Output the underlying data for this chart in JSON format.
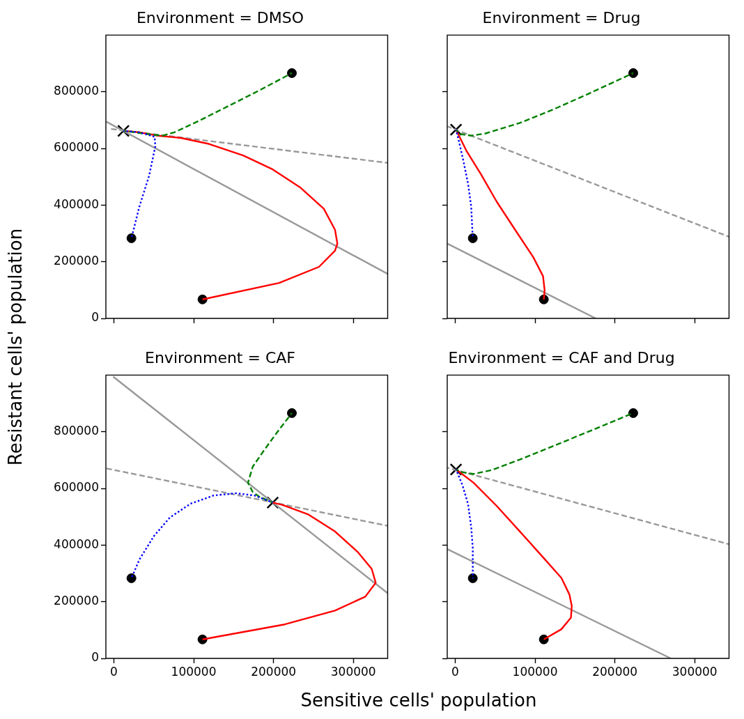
{
  "chart_data": [
    {
      "type": "line",
      "title": "Environment = DMSO",
      "ylabel": "Resistant cells' population",
      "xlim": [
        -10000,
        343000
      ],
      "ylim": [
        0,
        1000000
      ],
      "xticks": [
        0,
        100000,
        200000,
        300000
      ],
      "yticks": [
        0,
        200000,
        400000,
        600000,
        800000
      ],
      "tick_labels": "y",
      "series": [
        {
          "type": "line",
          "color": "#999999",
          "line_style": "solid",
          "x": [
            -10000,
            343000
          ],
          "values": [
            695000,
            157000
          ]
        },
        {
          "type": "line",
          "color": "#999999",
          "line_style": "dashed",
          "x": [
            -7000,
            343000
          ],
          "values": [
            670000,
            549000
          ]
        },
        {
          "type": "line",
          "color": "#ff0000",
          "line_style": "solid",
          "x": [
            111000,
            207000,
            257000,
            277000,
            280000,
            277000,
            263000,
            234000,
            199000,
            162000,
            119000,
            84000,
            55000,
            32000,
            12000
          ],
          "values": [
            67000,
            125000,
            182000,
            239000,
            264000,
            313000,
            387000,
            461000,
            526000,
            575000,
            616000,
            637000,
            645000,
            657000,
            662000
          ]
        },
        {
          "type": "line",
          "color": "#008000",
          "line_style": "dashed",
          "x": [
            223000,
            185000,
            148000,
            107000,
            76000,
            61000,
            47000,
            12000
          ],
          "values": [
            866000,
            809000,
            756000,
            698000,
            657000,
            645000,
            649000,
            662000
          ]
        },
        {
          "type": "line",
          "color": "#0000ff",
          "line_style": "dotted",
          "x": [
            22000,
            32000,
            44000,
            52000,
            51000,
            32000,
            12000
          ],
          "values": [
            283000,
            395000,
            502000,
            608000,
            641000,
            657000,
            662000
          ]
        },
        {
          "type": "scatter",
          "color": "#000000",
          "marker": "circle",
          "x": [
            22000,
            111000,
            223000
          ],
          "values": [
            283000,
            67000,
            866000
          ]
        },
        {
          "type": "scatter",
          "color": "#000000",
          "marker": "cross",
          "x": [
            12000
          ],
          "values": [
            662000
          ]
        }
      ]
    },
    {
      "type": "line",
      "title": "Environment = Drug",
      "xlim": [
        -10000,
        343000
      ],
      "ylim": [
        0,
        1000000
      ],
      "xticks": [
        0,
        100000,
        200000,
        300000
      ],
      "yticks": [
        0,
        200000,
        400000,
        600000,
        800000
      ],
      "tick_labels": false,
      "series": [
        {
          "type": "line",
          "color": "#999999",
          "line_style": "solid",
          "x": [
            -10000,
            176000
          ],
          "values": [
            264000,
            0
          ]
        },
        {
          "type": "line",
          "color": "#999999",
          "line_style": "dashed",
          "x": [
            -10000,
            343000
          ],
          "values": [
            678000,
            288000
          ]
        },
        {
          "type": "line",
          "color": "#ff0000",
          "line_style": "solid",
          "x": [
            111000,
            112000,
            110000,
            98000,
            75000,
            52000,
            32000,
            14000,
            1000
          ],
          "values": [
            67000,
            100000,
            149000,
            215000,
            313000,
            412000,
            510000,
            592000,
            666000
          ]
        },
        {
          "type": "line",
          "color": "#008000",
          "line_style": "dashed",
          "x": [
            223000,
            167000,
            124000,
            81000,
            38000,
            20000,
            6000,
            1000
          ],
          "values": [
            866000,
            793000,
            739000,
            690000,
            653000,
            645000,
            651000,
            666000
          ]
        },
        {
          "type": "line",
          "color": "#0000ff",
          "line_style": "dotted",
          "x": [
            22000,
            20000,
            16000,
            10000,
            4000,
            1000
          ],
          "values": [
            283000,
            395000,
            477000,
            559000,
            633000,
            666000
          ]
        },
        {
          "type": "scatter",
          "color": "#000000",
          "marker": "circle",
          "x": [
            22000,
            111000,
            223000
          ],
          "values": [
            283000,
            67000,
            866000
          ]
        },
        {
          "type": "scatter",
          "color": "#000000",
          "marker": "cross",
          "x": [
            1000
          ],
          "values": [
            666000
          ]
        }
      ]
    },
    {
      "type": "line",
      "title": "Environment = CAF",
      "xlabel": "Sensitive cells' population",
      "xlim": [
        -10000,
        343000
      ],
      "ylim": [
        0,
        1000000
      ],
      "xticks": [
        0,
        100000,
        200000,
        300000
      ],
      "yticks": [
        0,
        200000,
        400000,
        600000,
        800000
      ],
      "series": [
        {
          "type": "line",
          "color": "#999999",
          "line_style": "solid",
          "x": [
            -1000,
            343000
          ],
          "values": [
            995000,
            230000
          ]
        },
        {
          "type": "line",
          "color": "#999999",
          "line_style": "dashed",
          "x": [
            -10000,
            343000
          ],
          "values": [
            671000,
            468000
          ]
        },
        {
          "type": "line",
          "color": "#ff0000",
          "line_style": "solid",
          "x": [
            111000,
            214000,
            277000,
            315000,
            328000,
            323000,
            306000,
            277000,
            243000,
            211000,
            199000
          ],
          "values": [
            67000,
            120000,
            169000,
            218000,
            267000,
            316000,
            374000,
            448000,
            509000,
            542000,
            550000
          ]
        },
        {
          "type": "line",
          "color": "#008000",
          "line_style": "dashed",
          "x": [
            223000,
            205000,
            188000,
            174000,
            168000,
            174000,
            182000,
            199000
          ],
          "values": [
            866000,
            800000,
            734000,
            677000,
            620000,
            587000,
            571000,
            550000
          ]
        },
        {
          "type": "line",
          "color": "#0000ff",
          "line_style": "dotted",
          "x": [
            22000,
            32000,
            50000,
            70000,
            96000,
            125000,
            153000,
            176000,
            199000
          ],
          "values": [
            283000,
            349000,
            431000,
            497000,
            546000,
            575000,
            583000,
            575000,
            550000
          ]
        },
        {
          "type": "scatter",
          "color": "#000000",
          "marker": "circle",
          "x": [
            22000,
            111000,
            223000
          ],
          "values": [
            283000,
            67000,
            866000
          ]
        },
        {
          "type": "scatter",
          "color": "#000000",
          "marker": "cross",
          "x": [
            199000
          ],
          "values": [
            550000
          ]
        }
      ]
    },
    {
      "type": "line",
      "title": "Environment = CAF and Drug",
      "xlim": [
        -10000,
        343000
      ],
      "ylim": [
        0,
        1000000
      ],
      "xticks": [
        0,
        100000,
        200000,
        300000
      ],
      "yticks": [
        0,
        200000,
        400000,
        600000,
        800000
      ],
      "tick_labels": "x",
      "series": [
        {
          "type": "line",
          "color": "#999999",
          "line_style": "solid",
          "x": [
            -10000,
            270000
          ],
          "values": [
            386000,
            0
          ]
        },
        {
          "type": "line",
          "color": "#999999",
          "line_style": "dashed",
          "x": [
            -10000,
            343000
          ],
          "values": [
            673000,
            403000
          ]
        },
        {
          "type": "line",
          "color": "#ff0000",
          "line_style": "solid",
          "x": [
            111000,
            133000,
            145000,
            146000,
            143000,
            133000,
            110000,
            81000,
            52000,
            23000,
            1000
          ],
          "values": [
            67000,
            103000,
            144000,
            185000,
            226000,
            284000,
            357000,
            448000,
            538000,
            620000,
            667000
          ]
        },
        {
          "type": "line",
          "color": "#008000",
          "line_style": "dashed",
          "x": [
            223000,
            170000,
            124000,
            81000,
            46000,
            23000,
            9000,
            1000
          ],
          "values": [
            866000,
            804000,
            751000,
            702000,
            665000,
            651000,
            657000,
            667000
          ]
        },
        {
          "type": "line",
          "color": "#0000ff",
          "line_style": "dotted",
          "x": [
            22000,
            22000,
            20000,
            16000,
            9000,
            1000
          ],
          "values": [
            283000,
            390000,
            464000,
            546000,
            612000,
            667000
          ]
        },
        {
          "type": "scatter",
          "color": "#000000",
          "marker": "circle",
          "x": [
            22000,
            111000,
            223000
          ],
          "values": [
            283000,
            67000,
            866000
          ]
        },
        {
          "type": "scatter",
          "color": "#000000",
          "marker": "cross",
          "x": [
            1000
          ],
          "values": [
            667000
          ]
        }
      ]
    }
  ]
}
